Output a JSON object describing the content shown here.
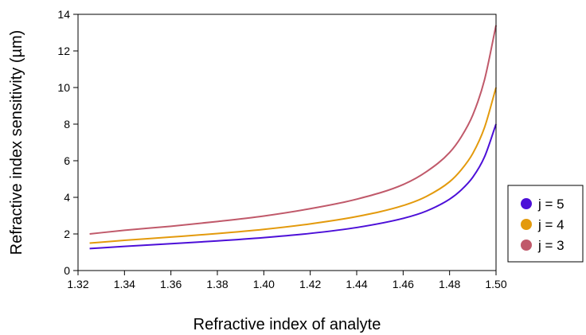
{
  "chart_data": {
    "type": "line",
    "title": "",
    "xlabel": "Refractive index of analyte",
    "ylabel": "Refractive index sensitivity (µm)",
    "xlim": [
      1.32,
      1.5
    ],
    "ylim": [
      0,
      14
    ],
    "xticks": [
      "1.32",
      "1.34",
      "1.36",
      "1.38",
      "1.40",
      "1.42",
      "1.44",
      "1.46",
      "1.48",
      "1.50"
    ],
    "yticks": [
      "0",
      "2",
      "4",
      "6",
      "8",
      "10",
      "12",
      "14"
    ],
    "grid": false,
    "legend_position": "right",
    "series": [
      {
        "name": "j = 5",
        "color": "#4c0fd8",
        "x": [
          1.325,
          1.34,
          1.36,
          1.38,
          1.4,
          1.42,
          1.44,
          1.46,
          1.47,
          1.48,
          1.485,
          1.49,
          1.495,
          1.5
        ],
        "y": [
          1.2,
          1.32,
          1.47,
          1.62,
          1.8,
          2.03,
          2.35,
          2.85,
          3.25,
          3.9,
          4.4,
          5.1,
          6.2,
          8.0
        ]
      },
      {
        "name": "j = 4",
        "color": "#e39a0c",
        "x": [
          1.325,
          1.34,
          1.36,
          1.38,
          1.4,
          1.42,
          1.44,
          1.46,
          1.47,
          1.48,
          1.485,
          1.49,
          1.495,
          1.5
        ],
        "y": [
          1.5,
          1.65,
          1.83,
          2.02,
          2.25,
          2.55,
          2.95,
          3.55,
          4.05,
          4.85,
          5.5,
          6.4,
          7.8,
          10.0
        ]
      },
      {
        "name": "j = 3",
        "color": "#c0596a",
        "x": [
          1.325,
          1.34,
          1.36,
          1.38,
          1.4,
          1.42,
          1.44,
          1.46,
          1.47,
          1.48,
          1.485,
          1.49,
          1.495,
          1.5
        ],
        "y": [
          2.0,
          2.2,
          2.42,
          2.68,
          2.98,
          3.38,
          3.9,
          4.7,
          5.4,
          6.45,
          7.3,
          8.5,
          10.4,
          13.4
        ]
      }
    ]
  }
}
